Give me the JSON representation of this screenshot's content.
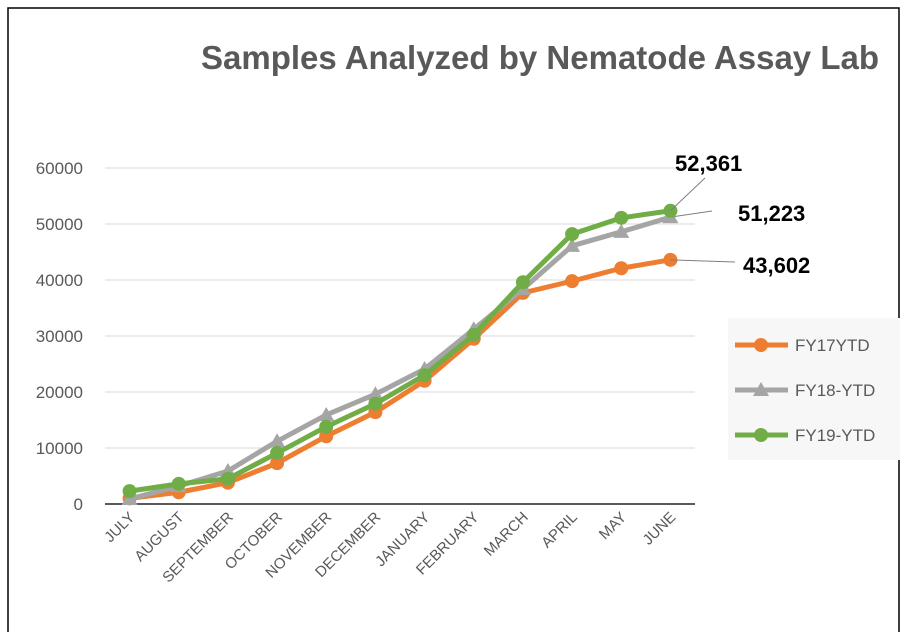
{
  "chart_data": {
    "type": "line",
    "title": "Samples Analyzed by Nematode Assay Lab",
    "categories": [
      "JULY",
      "AUGUST",
      "SEPTEMBER",
      "OCTOBER",
      "NOVEMBER",
      "DECEMBER",
      "JANUARY",
      "FEBRUARY",
      "MARCH",
      "APRIL",
      "MAY",
      "JUNE"
    ],
    "series": [
      {
        "name": "FY17YTD",
        "color": "#ed7d31",
        "marker": "circle",
        "values": [
          1000,
          2100,
          3800,
          7300,
          12100,
          16400,
          22000,
          29500,
          37700,
          39800,
          42100,
          43602
        ],
        "value_labels": [
          null,
          null,
          null,
          null,
          null,
          null,
          null,
          null,
          null,
          null,
          null,
          "43,602"
        ]
      },
      {
        "name": "FY18-YTD",
        "color": "#a5a5a5",
        "marker": "triangle",
        "values": [
          900,
          3200,
          5900,
          11200,
          15900,
          19600,
          24100,
          31200,
          38400,
          46100,
          48600,
          51223
        ],
        "value_labels": [
          null,
          null,
          null,
          null,
          null,
          null,
          null,
          null,
          null,
          null,
          null,
          "51,223"
        ]
      },
      {
        "name": "FY19-YTD",
        "color": "#70ad47",
        "marker": "circle",
        "values": [
          2300,
          3600,
          4500,
          9100,
          13800,
          17900,
          23000,
          30200,
          39600,
          48200,
          51100,
          52361
        ],
        "value_labels": [
          null,
          null,
          null,
          null,
          null,
          null,
          null,
          null,
          null,
          null,
          null,
          "52,361"
        ]
      }
    ],
    "ylim": [
      0,
      60000
    ],
    "yticks": [
      0,
      10000,
      20000,
      30000,
      40000,
      50000,
      60000
    ],
    "grid": true,
    "legend": "right"
  }
}
